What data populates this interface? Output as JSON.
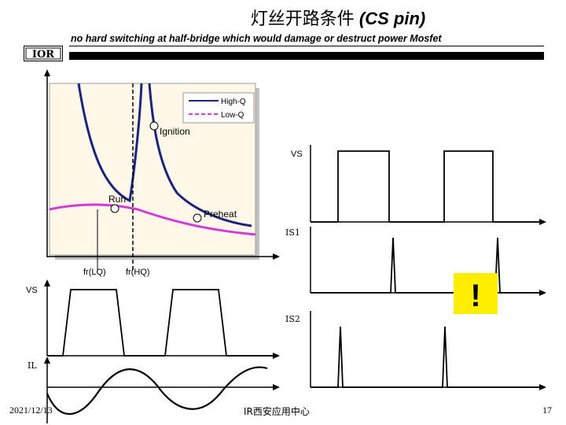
{
  "header": {
    "title_zh": "灯丝开路条件",
    "title_en": "(CS pin)",
    "subtitle": "no hard switching at half-bridge which would damage or destruct power Mosfet",
    "logo_text": "IOR"
  },
  "resonance_plot": {
    "legend": {
      "high_q": "High-Q",
      "low_q": "Low-Q"
    },
    "points": {
      "ignition": "Ignition",
      "run": "Run",
      "preheat": "Preheat"
    },
    "freq_labels": {
      "fr_lq": "fr(LQ)",
      "fr_hq": "fr(HQ)"
    },
    "colors": {
      "high_q": "#1a237e",
      "low_q": "#d63ad6",
      "plot_bg": "#fff8e8"
    }
  },
  "waveforms": {
    "vs_right": "VS",
    "is1": "IS1",
    "vs_left": "VS",
    "is2": "IS2",
    "il": "IL"
  },
  "warning": {
    "symbol": "!",
    "color": "#ffee00"
  },
  "footer": {
    "date": "2021/12/13",
    "center": "IR西安应用中心",
    "page": "17"
  }
}
